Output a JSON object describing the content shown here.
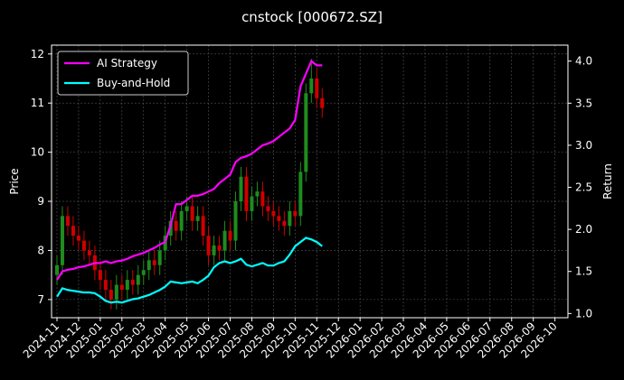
{
  "chart_data": {
    "type": "candlestick",
    "title": "cnstock [000672.SZ]",
    "y_label": "Price",
    "y2_label": "Return",
    "xlim": [
      -0.25,
      23.6
    ],
    "xticks": [
      {
        "value": 0,
        "label": "2024-11"
      },
      {
        "value": 1,
        "label": "2024-12"
      },
      {
        "value": 2,
        "label": "2025-01"
      },
      {
        "value": 3,
        "label": "2025-02"
      },
      {
        "value": 4,
        "label": "2025-03"
      },
      {
        "value": 5,
        "label": "2025-04"
      },
      {
        "value": 6,
        "label": "2025-05"
      },
      {
        "value": 7,
        "label": "2025-06"
      },
      {
        "value": 8,
        "label": "2025-07"
      },
      {
        "value": 9,
        "label": "2025-08"
      },
      {
        "value": 10,
        "label": "2025-09"
      },
      {
        "value": 11,
        "label": "2025-10"
      },
      {
        "value": 12,
        "label": "2025-11"
      },
      {
        "value": 13,
        "label": "2025-12"
      },
      {
        "value": 14,
        "label": "2026-01"
      },
      {
        "value": 15,
        "label": "2026-02"
      },
      {
        "value": 16,
        "label": "2026-03"
      },
      {
        "value": 17,
        "label": "2026-04"
      },
      {
        "value": 18,
        "label": "2026-05"
      },
      {
        "value": 19,
        "label": "2026-06"
      },
      {
        "value": 20,
        "label": "2026-07"
      },
      {
        "value": 21,
        "label": "2026-08"
      },
      {
        "value": 22,
        "label": "2026-09"
      },
      {
        "value": 23,
        "label": "2026-10"
      }
    ],
    "ylim": [
      6.63,
      12.18
    ],
    "yticks": [
      7,
      8,
      9,
      10,
      11,
      12
    ],
    "y2lim": [
      0.95,
      4.19
    ],
    "y2ticks": [
      {
        "value": 1,
        "label": "1.0"
      },
      1.5,
      {
        "value": 2,
        "label": "2.0"
      },
      2.5,
      {
        "value": 3,
        "label": "3.0"
      },
      3.5,
      {
        "value": 4,
        "label": "4.0"
      }
    ],
    "grid": true,
    "legend": "upper left",
    "up_color": "#1e8c1e",
    "down_color": "#d00000",
    "x": [
      0,
      0.25,
      0.5,
      0.75,
      1,
      1.25,
      1.5,
      1.75,
      2,
      2.25,
      2.5,
      2.75,
      3,
      3.25,
      3.5,
      3.75,
      4,
      4.25,
      4.5,
      4.75,
      5,
      5.25,
      5.5,
      5.75,
      6,
      6.25,
      6.5,
      6.75,
      7,
      7.25,
      7.5,
      7.75,
      8,
      8.25,
      8.5,
      8.75,
      9,
      9.25,
      9.5,
      9.75,
      10,
      10.25,
      10.5,
      10.75,
      11,
      11.25,
      11.5,
      11.75,
      12,
      12.25
    ],
    "open": [
      7.5,
      7.7,
      8.7,
      8.5,
      8.3,
      8.2,
      8.0,
      7.9,
      7.6,
      7.4,
      7.2,
      7.0,
      7.3,
      7.2,
      7.4,
      7.3,
      7.5,
      7.6,
      7.8,
      7.7,
      8.0,
      8.3,
      8.6,
      8.4,
      8.8,
      8.9,
      8.6,
      8.7,
      8.3,
      7.9,
      8.1,
      8.0,
      8.4,
      8.2,
      9.0,
      9.5,
      8.8,
      9.1,
      9.2,
      8.9,
      8.8,
      8.7,
      8.6,
      8.5,
      8.8,
      8.7,
      9.6,
      11.2,
      11.5,
      11.1
    ],
    "close": [
      7.7,
      8.7,
      8.5,
      8.3,
      8.2,
      8.0,
      7.9,
      7.6,
      7.4,
      7.2,
      7.0,
      7.3,
      7.2,
      7.4,
      7.3,
      7.5,
      7.6,
      7.8,
      7.7,
      8.0,
      8.3,
      8.6,
      8.4,
      8.8,
      8.9,
      8.6,
      8.7,
      8.3,
      7.9,
      8.1,
      8.0,
      8.4,
      8.2,
      9.0,
      9.5,
      8.8,
      9.1,
      9.2,
      8.9,
      8.8,
      8.7,
      8.6,
      8.5,
      8.8,
      8.7,
      9.6,
      11.2,
      11.5,
      11.1,
      10.9
    ],
    "high": [
      7.9,
      8.9,
      8.9,
      8.7,
      8.5,
      8.4,
      8.2,
      8.1,
      7.8,
      7.6,
      7.4,
      7.5,
      7.5,
      7.6,
      7.6,
      7.7,
      7.8,
      8.0,
      8.0,
      8.2,
      8.5,
      8.8,
      8.8,
      9.0,
      9.1,
      9.1,
      8.9,
      8.9,
      8.5,
      8.3,
      8.3,
      8.6,
      8.6,
      9.2,
      9.7,
      9.7,
      9.3,
      9.4,
      9.4,
      9.1,
      9.0,
      8.9,
      8.8,
      9.0,
      9.0,
      9.8,
      11.4,
      11.9,
      11.7,
      11.3
    ],
    "low": [
      7.3,
      7.5,
      8.3,
      8.1,
      8.0,
      7.8,
      7.7,
      7.4,
      7.2,
      7.0,
      6.8,
      6.8,
      7.0,
      7.0,
      7.1,
      7.1,
      7.3,
      7.4,
      7.5,
      7.5,
      7.8,
      8.1,
      8.2,
      8.2,
      8.6,
      8.4,
      8.4,
      8.1,
      7.7,
      7.7,
      7.8,
      7.8,
      8.0,
      8.0,
      8.8,
      8.6,
      8.6,
      8.9,
      8.7,
      8.6,
      8.5,
      8.4,
      8.3,
      8.3,
      8.5,
      8.5,
      9.4,
      11.0,
      10.9,
      10.7
    ],
    "series": [
      {
        "name": "AI Strategy",
        "color": "#ff00ff",
        "axis": "y2",
        "values": [
          1.4,
          1.5,
          1.52,
          1.53,
          1.55,
          1.56,
          1.58,
          1.6,
          1.6,
          1.62,
          1.6,
          1.62,
          1.63,
          1.65,
          1.68,
          1.7,
          1.72,
          1.75,
          1.78,
          1.82,
          1.85,
          2.05,
          2.3,
          2.3,
          2.35,
          2.4,
          2.4,
          2.42,
          2.45,
          2.48,
          2.55,
          2.6,
          2.65,
          2.8,
          2.85,
          2.87,
          2.9,
          2.95,
          3.0,
          3.02,
          3.05,
          3.1,
          3.15,
          3.2,
          3.3,
          3.7,
          3.85,
          4.0,
          3.95,
          3.95
        ]
      },
      {
        "name": "Buy-and-Hold",
        "color": "#00ffff",
        "axis": "y2",
        "values": [
          1.2,
          1.3,
          1.28,
          1.27,
          1.26,
          1.25,
          1.25,
          1.24,
          1.2,
          1.15,
          1.13,
          1.14,
          1.13,
          1.15,
          1.17,
          1.18,
          1.2,
          1.22,
          1.25,
          1.28,
          1.32,
          1.38,
          1.37,
          1.36,
          1.37,
          1.38,
          1.36,
          1.4,
          1.45,
          1.55,
          1.6,
          1.62,
          1.6,
          1.62,
          1.65,
          1.58,
          1.56,
          1.58,
          1.6,
          1.57,
          1.57,
          1.6,
          1.62,
          1.7,
          1.8,
          1.85,
          1.9,
          1.88,
          1.85,
          1.8
        ]
      }
    ]
  }
}
